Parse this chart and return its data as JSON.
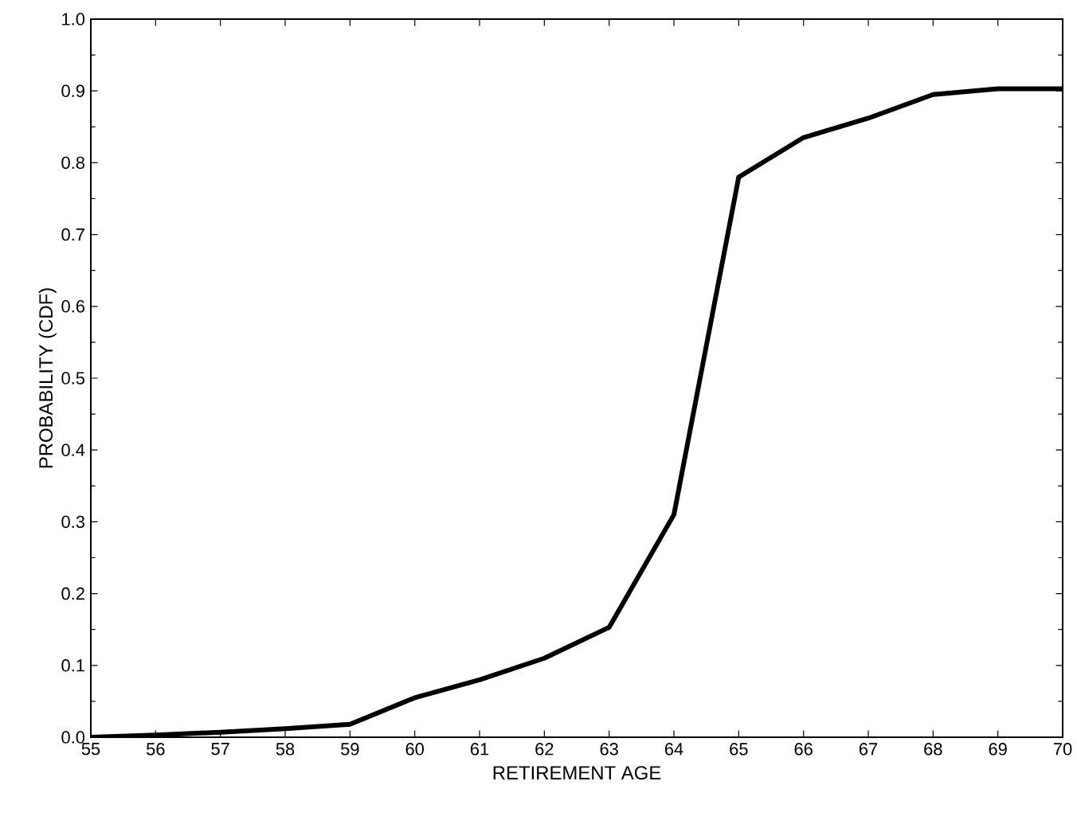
{
  "chart_data": {
    "type": "line",
    "xlabel": "RETIREMENT AGE",
    "ylabel": "PROBABILITY (CDF)",
    "x": [
      55,
      56,
      57,
      58,
      59,
      60,
      61,
      62,
      63,
      64,
      65,
      66,
      67,
      68,
      69,
      70
    ],
    "series": [
      {
        "color": "#000000",
        "values": [
          0.0,
          0.003,
          0.007,
          0.012,
          0.018,
          0.055,
          0.08,
          0.11,
          0.153,
          0.31,
          0.78,
          0.835,
          0.862,
          0.895,
          0.903,
          0.903
        ]
      }
    ],
    "xlim": [
      55,
      70
    ],
    "xticks": [
      55,
      56,
      57,
      58,
      59,
      60,
      61,
      62,
      63,
      64,
      65,
      66,
      67,
      68,
      69,
      70
    ],
    "ylim": [
      0,
      1
    ],
    "yticks": [
      {
        "value": 0,
        "label": "0.0"
      },
      {
        "value": 0.1,
        "label": "0.1"
      },
      {
        "value": 0.2,
        "label": "0.2"
      },
      {
        "value": 0.3,
        "label": "0.3"
      },
      {
        "value": 0.4,
        "label": "0.4"
      },
      {
        "value": 0.5,
        "label": "0.5"
      },
      {
        "value": 0.6,
        "label": "0.6"
      },
      {
        "value": 0.7,
        "label": "0.7"
      },
      {
        "value": 0.8,
        "label": "0.8"
      },
      {
        "value": 0.9,
        "label": "0.9"
      },
      {
        "value": 1,
        "label": "1.0"
      }
    ],
    "grid": false,
    "marker": "none",
    "line_style": "solid"
  }
}
